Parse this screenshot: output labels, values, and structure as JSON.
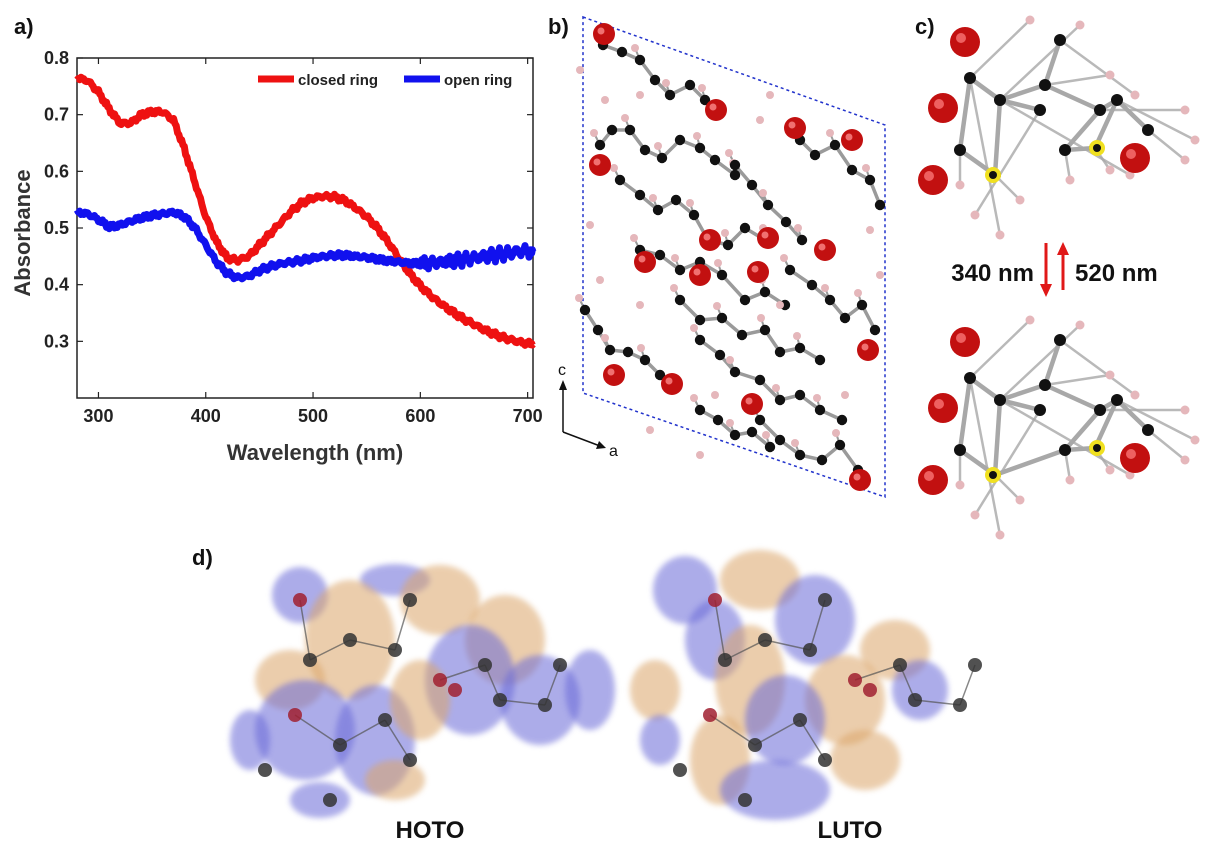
{
  "panels": {
    "a": "a)",
    "b": "b)",
    "c": "c)",
    "d": "d)"
  },
  "chart_data": {
    "type": "line",
    "xlabel": "Wavelength (nm)",
    "ylabel": "Absorbance",
    "xlim": [
      280,
      705
    ],
    "ylim": [
      0.2,
      0.8
    ],
    "xticks": [
      300,
      400,
      500,
      600,
      700
    ],
    "yticks": [
      0.3,
      0.4,
      0.5,
      0.6,
      0.7,
      0.8
    ],
    "legend": "top-right",
    "grid": false,
    "series": [
      {
        "name": "closed ring",
        "color": "#ee1111",
        "x": [
          280,
          290,
          300,
          310,
          320,
          330,
          340,
          350,
          360,
          370,
          380,
          390,
          400,
          410,
          420,
          430,
          440,
          450,
          460,
          470,
          480,
          490,
          500,
          510,
          520,
          530,
          540,
          550,
          560,
          570,
          580,
          590,
          600,
          610,
          620,
          630,
          640,
          650,
          660,
          670,
          680,
          690,
          700,
          705
        ],
        "y": [
          0.765,
          0.76,
          0.74,
          0.71,
          0.685,
          0.685,
          0.7,
          0.705,
          0.705,
          0.69,
          0.64,
          0.58,
          0.52,
          0.475,
          0.447,
          0.443,
          0.45,
          0.47,
          0.49,
          0.51,
          0.53,
          0.545,
          0.553,
          0.556,
          0.555,
          0.548,
          0.535,
          0.52,
          0.5,
          0.475,
          0.447,
          0.42,
          0.398,
          0.38,
          0.365,
          0.352,
          0.34,
          0.33,
          0.32,
          0.312,
          0.305,
          0.3,
          0.296,
          0.295
        ]
      },
      {
        "name": "open ring",
        "color": "#1111ee",
        "x": [
          280,
          290,
          300,
          310,
          320,
          330,
          340,
          350,
          360,
          370,
          380,
          390,
          400,
          410,
          420,
          430,
          440,
          450,
          460,
          470,
          480,
          490,
          500,
          510,
          520,
          530,
          540,
          550,
          560,
          570,
          580,
          590,
          600,
          610,
          620,
          630,
          640,
          650,
          660,
          670,
          680,
          690,
          700,
          705
        ],
        "y": [
          0.528,
          0.525,
          0.515,
          0.502,
          0.505,
          0.512,
          0.518,
          0.522,
          0.525,
          0.528,
          0.52,
          0.5,
          0.47,
          0.44,
          0.42,
          0.412,
          0.415,
          0.425,
          0.432,
          0.437,
          0.44,
          0.443,
          0.447,
          0.45,
          0.452,
          0.452,
          0.45,
          0.448,
          0.445,
          0.442,
          0.44,
          0.438,
          0.437,
          0.438,
          0.44,
          0.442,
          0.444,
          0.447,
          0.45,
          0.452,
          0.455,
          0.458,
          0.46,
          0.458
        ]
      }
    ]
  },
  "crystal": {
    "axis_c": "c",
    "axis_a": "a"
  },
  "photoswitch": {
    "forward": "340 nm",
    "backward": "520 nm"
  },
  "orbitals": {
    "left": "HOTO",
    "right": "LUTO"
  }
}
